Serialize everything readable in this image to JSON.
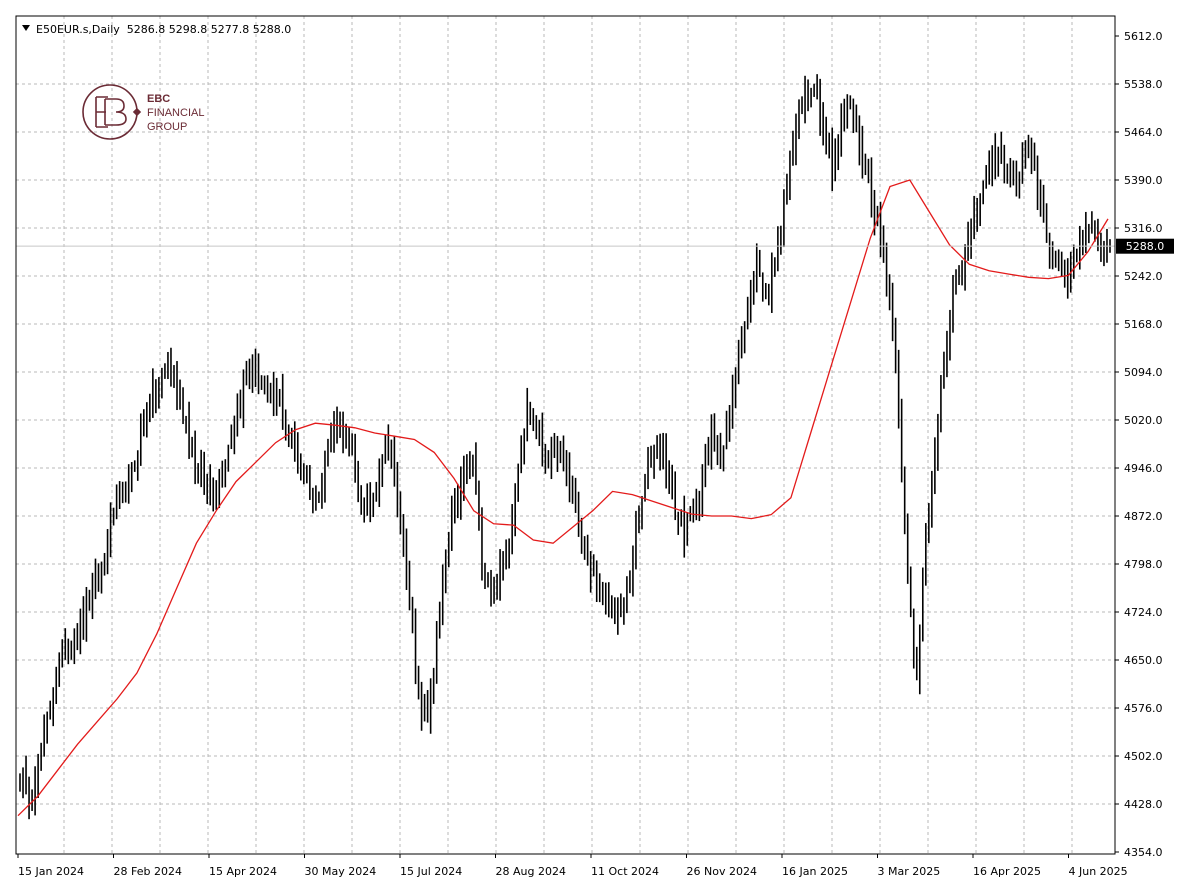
{
  "header": {
    "symbol_line": "E50EUR.s,Daily  5286.8 5298.8 5277.8 5288.0"
  },
  "logo": {
    "line1": "EBC",
    "line2": "FINANCIAL",
    "line3": "GROUP",
    "color": "#6b2b35"
  },
  "colors": {
    "bars": "#000000",
    "ma": "#e31b1b",
    "grid": "#b8b8b8",
    "background": "#ffffff",
    "price_tag_bg": "#000000"
  },
  "chart_data": {
    "type": "ohlc_bar",
    "title": "E50EUR.s,Daily",
    "ylim": [
      4354,
      5640
    ],
    "y_ticks": [
      "5612.0",
      "5538.0",
      "5464.0",
      "5390.0",
      "5316.0",
      "5242.0",
      "5168.0",
      "5094.0",
      "5020.0",
      "4946.0",
      "4872.0",
      "4798.0",
      "4724.0",
      "4650.0",
      "4576.0",
      "4502.0",
      "4428.0",
      "4354.0"
    ],
    "x_ticks": [
      "15 Jan 2024",
      "28 Feb 2024",
      "15 Apr 2024",
      "30 May 2024",
      "15 Jul 2024",
      "28 Aug 2024",
      "11 Oct 2024",
      "26 Nov 2024",
      "16 Jan 2025",
      "3 Mar 2025",
      "16 Apr 2025",
      "4 Jun 2025"
    ],
    "current_price": "5288.0",
    "last_bar": {
      "open": 5286.8,
      "high": 5298.8,
      "low": 5277.8,
      "close": 5288.0
    },
    "price_path": [
      4470,
      4440,
      4490,
      4560,
      4640,
      4670,
      4690,
      4720,
      4760,
      4790,
      4880,
      4900,
      4930,
      4990,
      5050,
      5060,
      5110,
      5070,
      5020,
      4950,
      4920,
      4900,
      4950,
      5000,
      5060,
      5100,
      5080,
      5050,
      5060,
      5000,
      4960,
      4930,
      4890,
      4960,
      5020,
      5010,
      4960,
      4890,
      4880,
      4960,
      5000,
      4870,
      4780,
      4600,
      4550,
      4660,
      4800,
      4880,
      4930,
      4960,
      4800,
      4760,
      4780,
      4840,
      4960,
      5040,
      5000,
      4960,
      4980,
      4950,
      4900,
      4820,
      4780,
      4740,
      4730,
      4720,
      4780,
      4870,
      4950,
      4990,
      4950,
      4880,
      4850,
      4880,
      4930,
      5000,
      4970,
      5040,
      5140,
      5220,
      5260,
      5210,
      5290,
      5380,
      5470,
      5520,
      5540,
      5480,
      5410,
      5490,
      5510,
      5440,
      5380,
      5310,
      5240,
      5080,
      4800,
      4600,
      4850,
      4960,
      5100,
      5210,
      5250,
      5310,
      5370,
      5420,
      5430,
      5390,
      5380,
      5440,
      5390,
      5320,
      5260,
      5230,
      5280,
      5300,
      5320,
      5295,
      5288
    ],
    "ma_series": [
      4410,
      4440,
      4480,
      4520,
      4555,
      4590,
      4630,
      4690,
      4760,
      4830,
      4880,
      4925,
      4955,
      4985,
      5005,
      5015,
      5012,
      5008,
      5000,
      4995,
      4990,
      4970,
      4930,
      4880,
      4860,
      4858,
      4835,
      4830,
      4855,
      4880,
      4910,
      4905,
      4895,
      4885,
      4875,
      4872,
      4872,
      4868,
      4874,
      4900,
      5000,
      5100,
      5200,
      5300,
      5380,
      5390,
      5340,
      5290,
      5260,
      5250,
      5245,
      5240,
      5238,
      5243,
      5280,
      5330
    ]
  }
}
